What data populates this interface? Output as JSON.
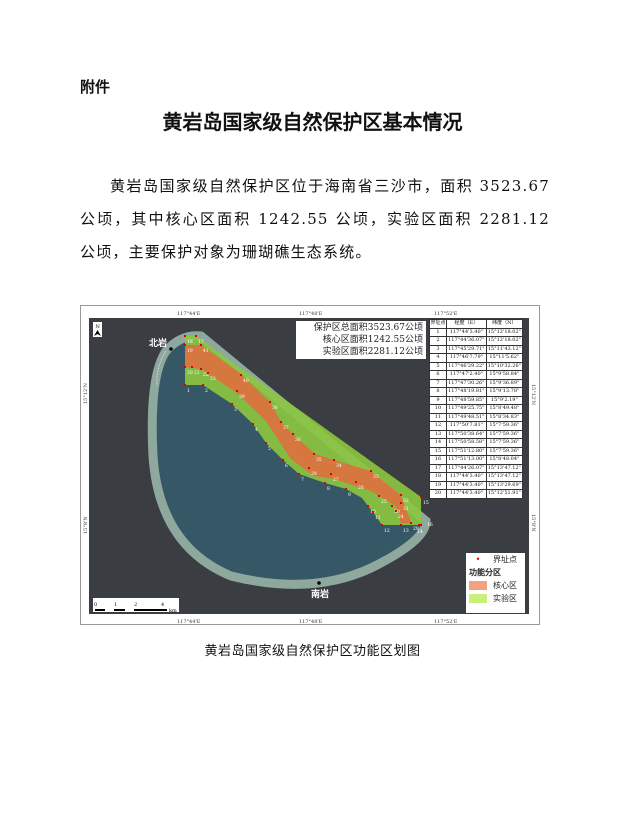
{
  "attachment_label": "附件",
  "title": "黄岩岛国家级自然保护区基本情况",
  "paragraph": "黄岩岛国家级自然保护区位于海南省三沙市，面积 3523.67 公顷，其中核心区面积 1242.55 公顷，实验区面积 2281.12 公顷，主要保护对象为珊瑚礁生态系统。",
  "map": {
    "area_lines": [
      "保护区总面积3523.67公顷",
      "核心区面积1242.55公顷",
      "实验区面积2281.12公顷"
    ],
    "top_ticks": [
      "117°44'E",
      "117°48'E",
      "117°52'E"
    ],
    "bottom_ticks": [
      "117°44'E",
      "117°48'E",
      "117°52'E"
    ],
    "left_ticks": [
      "15°12'N",
      "15°8'N"
    ],
    "right_ticks": [
      "15°12'N",
      "15°8'N"
    ],
    "north_label": "N",
    "north_rock": "北岩",
    "south_rock": "南岩",
    "scale_labels": [
      "0",
      "1",
      "2",
      "4"
    ],
    "scale_unit": "km",
    "point_labels": [
      "18",
      "17",
      "19",
      "41",
      "20",
      "21",
      "22",
      "23",
      "1",
      "2",
      "40",
      "3",
      "39",
      "4",
      "38",
      "5",
      "37",
      "6",
      "36",
      "35",
      "7",
      "34",
      "8",
      "33",
      "9",
      "32",
      "10",
      "31",
      "11",
      "30",
      "12",
      "29",
      "13",
      "14",
      "15",
      "16",
      "28",
      "27",
      "26",
      "25",
      "24"
    ],
    "legend": {
      "boundary_point": "界址点",
      "zoning_title": "功能分区",
      "core": "核心区",
      "experimental": "实验区"
    },
    "colors": {
      "core": "#f4a27e",
      "experimental": "#c8f07a",
      "point": "#e00000"
    },
    "table": {
      "headers": [
        "界址点",
        "经度（E）",
        "纬度（N）"
      ],
      "rows": [
        [
          "1",
          "117°44'3.40\"",
          "15°12'18.02\""
        ],
        [
          "2",
          "117°44'36.07\"",
          "15°12'18.02\""
        ],
        [
          "3",
          "117°45'29.71\"",
          "15°11'43.12\""
        ],
        [
          "4",
          "117°46'7.79\"",
          "15°11'5.62\""
        ],
        [
          "5",
          "117°46'29.22\"",
          "15°10'32.26\""
        ],
        [
          "6",
          "117°47'2.40\"",
          "15°9'58.84\""
        ],
        [
          "7",
          "117°47'30.26\"",
          "15°9'36.89\""
        ],
        [
          "8",
          "117°48'19.81\"",
          "15°9'13.78\""
        ],
        [
          "9",
          "117°48'59.85\"",
          "15°9'2.19\""
        ],
        [
          "10",
          "117°49'25.75\"",
          "15°8'49.48\""
        ],
        [
          "11",
          "117°49'48.51\"",
          "15°8'34.83\""
        ],
        [
          "12",
          "117°50'7.81\"",
          "15°7'59.36\""
        ],
        [
          "13",
          "117°50'38.64\"",
          "15°7'59.36\""
        ],
        [
          "14",
          "117°50'58.58\"",
          "15°7'59.36\""
        ],
        [
          "15",
          "117°51'12.80\"",
          "15°7'59.36\""
        ],
        [
          "16",
          "117°51'13.00\"",
          "15°8'48.04\""
        ],
        [
          "17",
          "117°44'26.07\"",
          "15°13'47.12\""
        ],
        [
          "18",
          "117°44'3.40\"",
          "15°13'47.12\""
        ],
        [
          "19",
          "117°44'3.40\"",
          "15°13'29.69\""
        ],
        [
          "20",
          "117°44'3.40\"",
          "15°12'51.91\""
        ]
      ]
    }
  },
  "caption": "黄岩岛国家级自然保护区功能区划图"
}
